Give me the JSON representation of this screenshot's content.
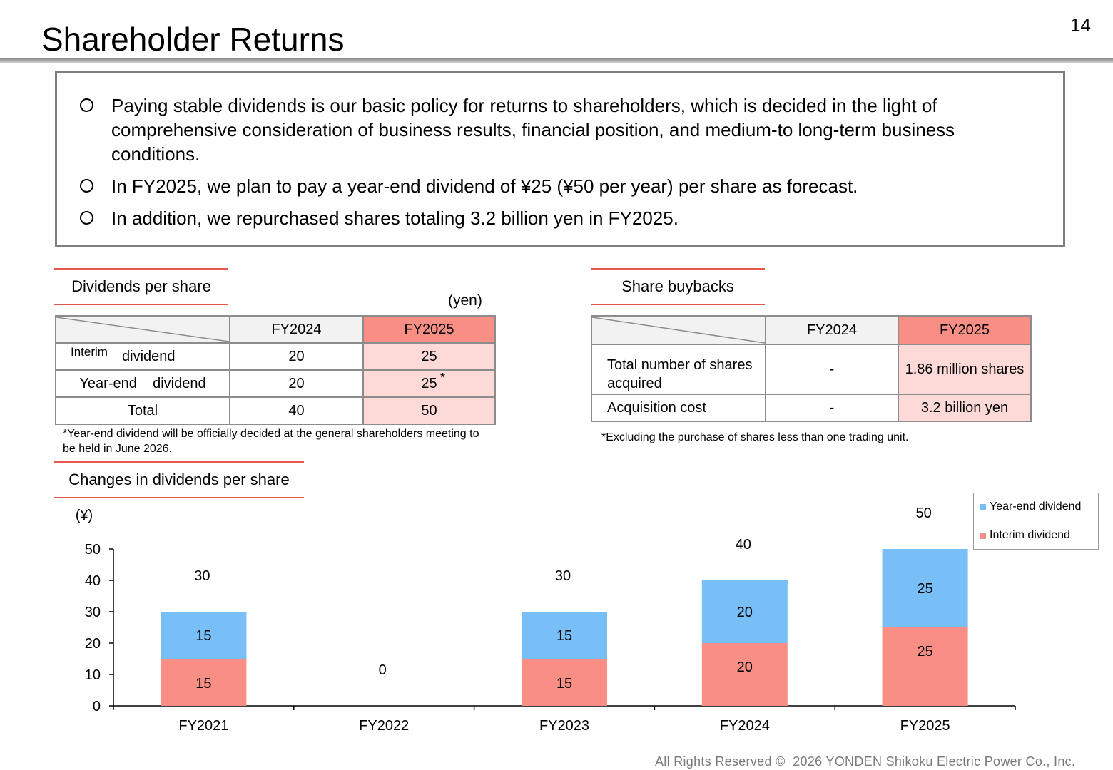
{
  "header": {
    "title": "Shareholder Returns",
    "page_number": "14"
  },
  "policy": {
    "bullets": [
      "Paying stable dividends is our basic policy for returns to shareholders, which is decided in the light of comprehensive consideration of business results, financial position, and medium-to long-term business conditions.",
      "In FY2025, we plan to pay a year-end dividend of ¥25 (¥50 per year) per share as forecast.",
      "In addition, we repurchased shares totaling 3.2 billion yen in FY2025."
    ]
  },
  "dividends_table": {
    "section_label": "Dividends per share",
    "unit": "(yen)",
    "headers": [
      "FY2024",
      "FY2025"
    ],
    "rows": [
      {
        "label_small": "Interim",
        "label": "dividend",
        "fy2024": "20",
        "fy2025": "25"
      },
      {
        "label": "Year-end    dividend",
        "fy2024": "20",
        "fy2025": "25",
        "mark": "*"
      },
      {
        "label": "Total",
        "fy2024": "40",
        "fy2025": "50"
      }
    ],
    "note": "*Year-end dividend will be officially decided at the general shareholders meeting to be held in June 2026."
  },
  "buyback_table": {
    "section_label": "Share buybacks",
    "headers": [
      "FY2024",
      "FY2025"
    ],
    "rows": [
      {
        "label": "Total number of shares acquired",
        "fy2024": "-",
        "fy2025": "1.86 million shares"
      },
      {
        "label": "Acquisition cost",
        "fy2024": "-",
        "fy2025": "3.2 billion yen"
      }
    ],
    "note": "*Excluding the purchase of shares less than one trading unit."
  },
  "chart_section_label": "Changes in dividends per share",
  "chart_data": {
    "type": "bar",
    "stacked": true,
    "title": "",
    "ylabel": "(¥)",
    "xlabel": "",
    "categories": [
      "FY2021",
      "FY2022",
      "FY2023",
      "FY2024",
      "FY2025"
    ],
    "series": [
      {
        "name": "Interim dividend",
        "values": [
          15,
          0,
          15,
          20,
          25
        ],
        "color": "#f98e85"
      },
      {
        "name": "Year-end dividend",
        "values": [
          15,
          0,
          15,
          20,
          25
        ],
        "color": "#78bef7"
      }
    ],
    "totals": [
      30,
      0,
      30,
      40,
      50
    ],
    "ylim": [
      0,
      50
    ],
    "yticks": [
      0,
      10,
      20,
      30,
      40,
      50
    ],
    "grid": false,
    "legend_position": "top-right"
  },
  "footer": {
    "text": "All Rights Reserved ©  2026 YONDEN Shikoku Electric Power Co., Inc."
  }
}
